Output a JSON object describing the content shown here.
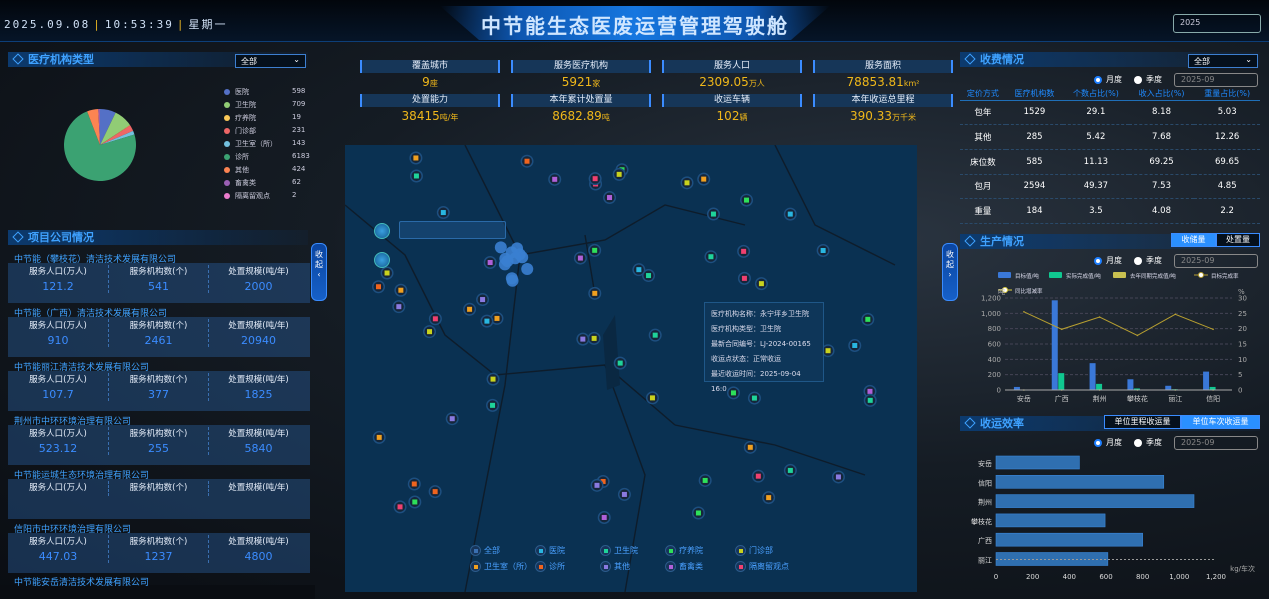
{
  "header": {
    "date": "2025.09.08",
    "time": "10:53:39",
    "weekday": "星期一",
    "title": "中节能生态医废运营管理驾驶舱",
    "year": "2025"
  },
  "institution_types": {
    "title": "医疗机构类型",
    "filter": "全部",
    "items": [
      {
        "label": "医院",
        "value": 598,
        "color": "#5470c6"
      },
      {
        "label": "卫生院",
        "value": 709,
        "color": "#91cc75"
      },
      {
        "label": "疗养院",
        "value": 19,
        "color": "#fac858"
      },
      {
        "label": "门诊部",
        "value": 231,
        "color": "#ee6666"
      },
      {
        "label": "卫生室（所）",
        "value": 143,
        "color": "#73c0de"
      },
      {
        "label": "诊所",
        "value": 6183,
        "color": "#3ba272"
      },
      {
        "label": "其他",
        "value": 424,
        "color": "#fc8452"
      },
      {
        "label": "畜禽类",
        "value": 62,
        "color": "#9a60b4"
      },
      {
        "label": "隔离留观点",
        "value": 2,
        "color": "#ea7ccc"
      }
    ]
  },
  "companies": {
    "title": "项目公司情况",
    "labels": {
      "population": "服务人口(万人)",
      "institutions": "服务机构数(个)",
      "capacity": "处置规模(吨/年)"
    },
    "items": [
      {
        "name": "中节能（攀枝花）清洁技术发展有限公司",
        "population": "121.2",
        "institutions": "541",
        "capacity": "2000"
      },
      {
        "name": "中节能（广西）清洁技术发展有限公司",
        "population": "910",
        "institutions": "2461",
        "capacity": "20940"
      },
      {
        "name": "中节能丽江清洁技术发展有限公司",
        "population": "107.7",
        "institutions": "377",
        "capacity": "1825"
      },
      {
        "name": "荆州市中环环境治理有限公司",
        "population": "523.12",
        "institutions": "255",
        "capacity": "5840"
      },
      {
        "name": "中节能运城生态环境治理有限公司",
        "population": "",
        "institutions": "",
        "capacity": ""
      },
      {
        "name": "信阳市中环环境治理有限公司",
        "population": "447.03",
        "institutions": "1237",
        "capacity": "4800"
      },
      {
        "name": "中节能安岳清洁技术发展有限公司"
      }
    ]
  },
  "stats": [
    {
      "label": "覆盖城市",
      "value": "9",
      "unit": "座"
    },
    {
      "label": "服务医疗机构",
      "value": "5921",
      "unit": "家"
    },
    {
      "label": "服务人口",
      "value": "2309.05",
      "unit": "万人"
    },
    {
      "label": "服务面积",
      "value": "78853.81",
      "unit": "km²"
    },
    {
      "label": "处置能力",
      "value": "38415",
      "unit": "吨/年"
    },
    {
      "label": "本年累计处置量",
      "value": "8682.89",
      "unit": "吨"
    },
    {
      "label": "收运车辆",
      "value": "102",
      "unit": "辆"
    },
    {
      "label": "本年收运总里程",
      "value": "390.33",
      "unit": "万千米"
    }
  ],
  "map": {
    "collapse_left": "收起",
    "collapse_right": "收起",
    "tooltip": {
      "name": "医疗机构名称：永宁坪乡卫生院",
      "type": "医疗机构类型：卫生院",
      "contract": "最新合同编号：LJ-2024-00165",
      "status": "收运点状态：正常收运",
      "last": "最近收运时间：2025-09-04 16:0"
    },
    "legend": [
      {
        "label": "全部",
        "color": "#3a6fb0"
      },
      {
        "label": "医院",
        "color": "#29b6e0"
      },
      {
        "label": "卫生院",
        "color": "#1fd39a"
      },
      {
        "label": "疗养院",
        "color": "#2ee05a"
      },
      {
        "label": "门诊部",
        "color": "#c8d21e"
      },
      {
        "label": "卫生室（所）",
        "color": "#f0a020"
      },
      {
        "label": "诊所",
        "color": "#f0641e"
      },
      {
        "label": "其他",
        "color": "#8a7ae0"
      },
      {
        "label": "畜禽类",
        "color": "#b060d8"
      },
      {
        "label": "隔离留观点",
        "color": "#f04070"
      }
    ]
  },
  "fees": {
    "title": "收费情况",
    "filter": "全部",
    "radio_month": "月度",
    "radio_quarter": "季度",
    "date": "2025-09",
    "columns": [
      "定价方式",
      "医疗机构数",
      "个数占比(%)",
      "收入占比(%)",
      "重量占比(%)"
    ],
    "rows": [
      [
        "包年",
        "1529",
        "29.1",
        "8.18",
        "5.03"
      ],
      [
        "其他",
        "285",
        "5.42",
        "7.68",
        "12.26"
      ],
      [
        "床位数",
        "585",
        "11.13",
        "69.25",
        "69.65"
      ],
      [
        "包月",
        "2594",
        "49.37",
        "7.53",
        "4.85"
      ],
      [
        "重量",
        "184",
        "3.5",
        "4.08",
        "2.2"
      ]
    ]
  },
  "production": {
    "title": "生产情况",
    "tabs": [
      "收储量",
      "处置量"
    ],
    "active_tab": 0,
    "radio_month": "月度",
    "radio_quarter": "季度",
    "date": "2025-09"
  },
  "efficiency": {
    "title": "收运效率",
    "tabs": [
      "单位里程收运量",
      "单位车次收运量"
    ],
    "active_tab": 1,
    "radio_month": "月度",
    "radio_quarter": "季度",
    "date": "2025-09"
  },
  "chart_data": [
    {
      "type": "pie",
      "categories": [
        "医院",
        "卫生院",
        "疗养院",
        "门诊部",
        "卫生室（所）",
        "诊所",
        "其他",
        "畜禽类",
        "隔离留观点"
      ],
      "values": [
        598,
        709,
        19,
        231,
        143,
        6183,
        424,
        62,
        2
      ]
    },
    {
      "type": "bar",
      "categories": [
        "安岳",
        "广西",
        "荆州",
        "攀枝花",
        "丽江",
        "信阳"
      ],
      "ylabel": "吨",
      "y2label": "%",
      "ylim": [
        0,
        1200
      ],
      "y2lim": [
        0,
        30
      ],
      "yticks": [
        "0",
        "200",
        "400",
        "600",
        "800",
        "1,000",
        "1,200"
      ],
      "y2ticks": [
        "0",
        "5",
        "10",
        "15",
        "20",
        "25",
        "30"
      ],
      "grid": true,
      "series": [
        {
          "name": "目标值/吨",
          "values": [
            40,
            1170,
            350,
            140,
            55,
            240
          ],
          "color": "#3a78d8"
        },
        {
          "name": "实际完成值/吨",
          "values": [
            5,
            220,
            80,
            20,
            10,
            40
          ],
          "color": "#10c890"
        },
        {
          "name": "去年同期完成值/吨",
          "values": [
            0,
            0,
            0,
            0,
            0,
            0
          ],
          "color": "#c8c050"
        },
        {
          "name": "目标完成率",
          "type": "line",
          "axis": "right",
          "values": [
            25.5,
            19.8,
            23.8,
            17.8,
            24.7,
            19.8
          ],
          "color": "#b8a030"
        },
        {
          "name": "同比增减率",
          "type": "line",
          "axis": "right",
          "values": [
            0,
            0,
            0,
            0,
            0,
            0
          ],
          "color": "#e0d040"
        }
      ]
    },
    {
      "type": "bar",
      "orientation": "horizontal",
      "categories": [
        "安岳",
        "信阳",
        "荆州",
        "攀枝花",
        "广西",
        "丽江"
      ],
      "values": [
        455,
        915,
        1080,
        595,
        800,
        610
      ],
      "xlabel": "kg/车次",
      "xlim": [
        0,
        1200
      ],
      "xticks": [
        "0",
        "200",
        "400",
        "600",
        "800",
        "1,000",
        "1,200"
      ],
      "color": "#2f6fb0"
    }
  ]
}
